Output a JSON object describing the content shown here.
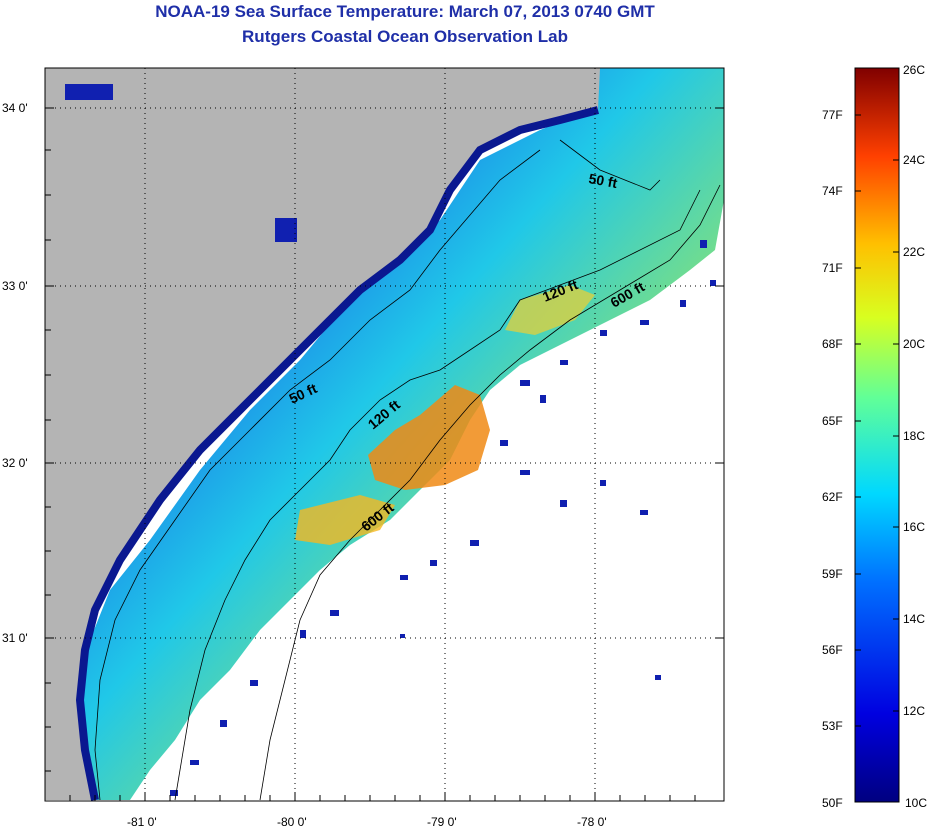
{
  "header": {
    "title": "NOAA-19 Sea Surface Temperature:  March 07, 2013 0740 GMT",
    "subtitle": "Rutgers Coastal Ocean Observation Lab"
  },
  "map": {
    "lat_labels": [
      "34 0'",
      "33 0'",
      "32 0'",
      "31 0'"
    ],
    "lon_labels": [
      "-81 0'",
      "-80 0'",
      "-79 0'",
      "-78 0'"
    ],
    "contour_labels": [
      "50 ft",
      "50 ft",
      "120 ft",
      "120 ft",
      "600 ft",
      "600 ft"
    ],
    "colors": {
      "land": "#b4b4b4",
      "ocean_nodata": "#ffffff",
      "coast_deep_blue": "#1020b0"
    }
  },
  "colorbar": {
    "fahrenheit_labels": [
      "77F",
      "74F",
      "71F",
      "68F",
      "65F",
      "62F",
      "59F",
      "56F",
      "53F",
      "50F"
    ],
    "celsius_labels": [
      "26C",
      "24C",
      "22C",
      "20C",
      "18C",
      "16C",
      "14C",
      "12C",
      "10C"
    ],
    "range_c": [
      10,
      26
    ]
  }
}
